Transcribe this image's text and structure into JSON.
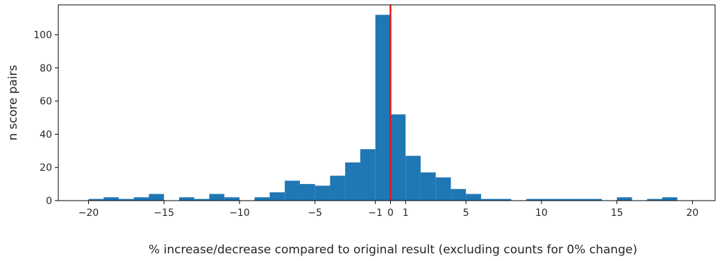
{
  "chart_data": {
    "type": "bar",
    "title": "",
    "xlabel": "% increase/decrease compared to original result (excluding counts for 0% change)",
    "ylabel": "n score pairs",
    "xlim": [
      -22,
      21.5
    ],
    "ylim": [
      0,
      118
    ],
    "grid": false,
    "bar_color": "#1f77b4",
    "reference_line": {
      "x": 0,
      "color": "#e8141c"
    },
    "x_ticks": [
      {
        "value": -20,
        "label": "−20"
      },
      {
        "value": -15,
        "label": "−15"
      },
      {
        "value": -10,
        "label": "−10"
      },
      {
        "value": -5,
        "label": "−5"
      },
      {
        "value": -1,
        "label": "−1"
      },
      {
        "value": 0,
        "label": "0"
      },
      {
        "value": 1,
        "label": "1"
      },
      {
        "value": 5,
        "label": "5"
      },
      {
        "value": 10,
        "label": "10"
      },
      {
        "value": 15,
        "label": "15"
      },
      {
        "value": 20,
        "label": "20"
      }
    ],
    "y_ticks": [
      {
        "value": 0,
        "label": "0"
      },
      {
        "value": 20,
        "label": "20"
      },
      {
        "value": 40,
        "label": "40"
      },
      {
        "value": 60,
        "label": "60"
      },
      {
        "value": 80,
        "label": "80"
      },
      {
        "value": 100,
        "label": "100"
      }
    ],
    "bins": [
      {
        "x0": -20,
        "x1": -19,
        "count": 1
      },
      {
        "x0": -19,
        "x1": -18,
        "count": 2
      },
      {
        "x0": -18,
        "x1": -17,
        "count": 1
      },
      {
        "x0": -17,
        "x1": -16,
        "count": 2
      },
      {
        "x0": -16,
        "x1": -15,
        "count": 4
      },
      {
        "x0": -14,
        "x1": -13,
        "count": 2
      },
      {
        "x0": -13,
        "x1": -12,
        "count": 1
      },
      {
        "x0": -12,
        "x1": -11,
        "count": 4
      },
      {
        "x0": -11,
        "x1": -10,
        "count": 2
      },
      {
        "x0": -9,
        "x1": -8,
        "count": 2
      },
      {
        "x0": -8,
        "x1": -7,
        "count": 5
      },
      {
        "x0": -7,
        "x1": -6,
        "count": 12
      },
      {
        "x0": -6,
        "x1": -5,
        "count": 10
      },
      {
        "x0": -5,
        "x1": -4,
        "count": 9
      },
      {
        "x0": -4,
        "x1": -3,
        "count": 15
      },
      {
        "x0": -3,
        "x1": -2,
        "count": 23
      },
      {
        "x0": -2,
        "x1": -1,
        "count": 31
      },
      {
        "x0": -1,
        "x1": 0,
        "count": 112
      },
      {
        "x0": 0,
        "x1": 1,
        "count": 52
      },
      {
        "x0": 1,
        "x1": 2,
        "count": 27
      },
      {
        "x0": 2,
        "x1": 3,
        "count": 17
      },
      {
        "x0": 3,
        "x1": 4,
        "count": 14
      },
      {
        "x0": 4,
        "x1": 5,
        "count": 7
      },
      {
        "x0": 5,
        "x1": 6,
        "count": 4
      },
      {
        "x0": 6,
        "x1": 7,
        "count": 1
      },
      {
        "x0": 7,
        "x1": 8,
        "count": 1
      },
      {
        "x0": 9,
        "x1": 10,
        "count": 1
      },
      {
        "x0": 10,
        "x1": 11,
        "count": 1
      },
      {
        "x0": 11,
        "x1": 12,
        "count": 1
      },
      {
        "x0": 12,
        "x1": 13,
        "count": 1
      },
      {
        "x0": 13,
        "x1": 14,
        "count": 1
      },
      {
        "x0": 15,
        "x1": 16,
        "count": 2
      },
      {
        "x0": 17,
        "x1": 18,
        "count": 1
      },
      {
        "x0": 18,
        "x1": 19,
        "count": 2
      }
    ]
  }
}
